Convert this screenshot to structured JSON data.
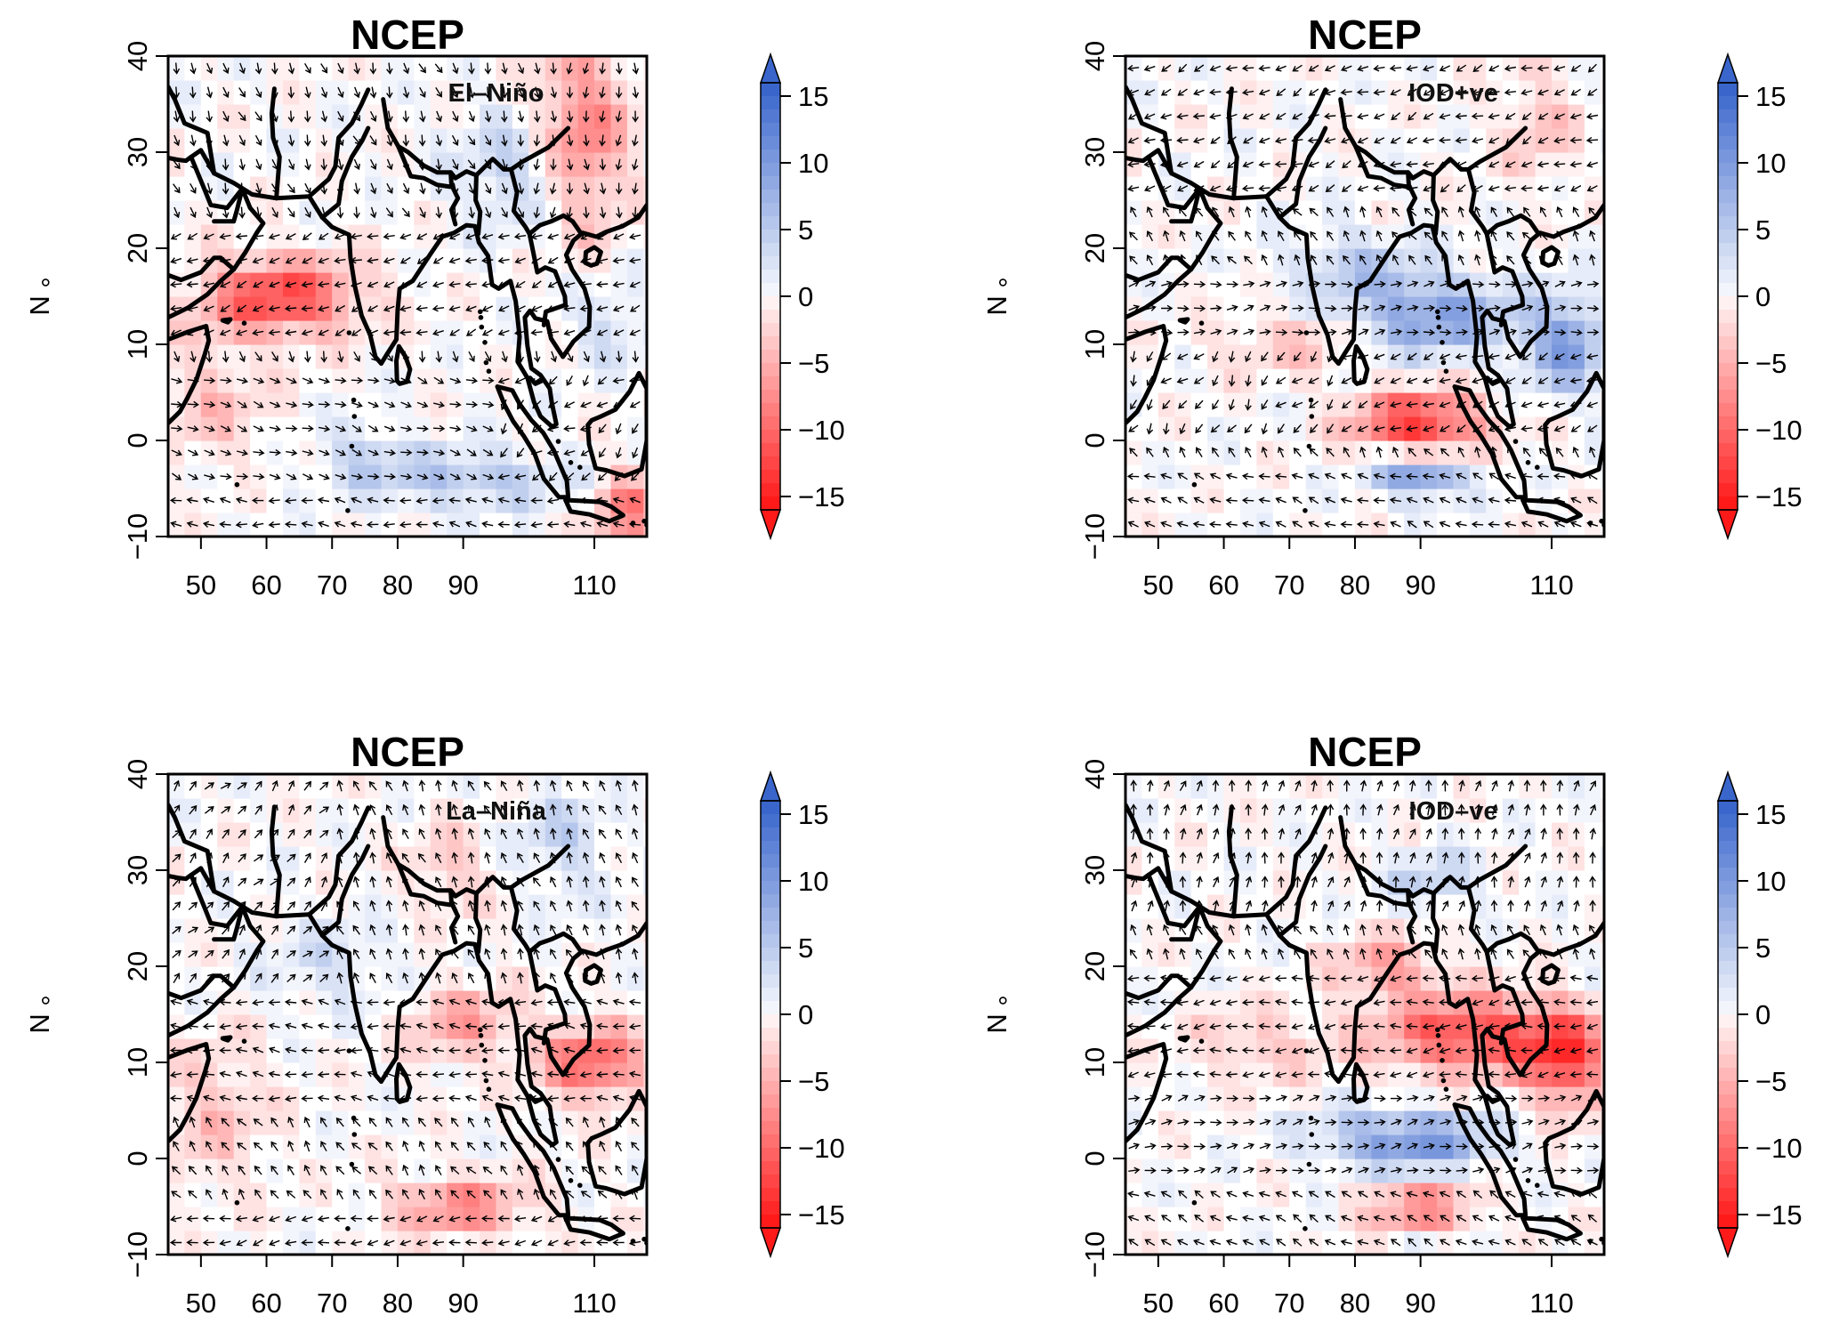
{
  "panels": [
    {
      "id": "el-nino",
      "title": "NCEP",
      "annotation": "El–Niño",
      "ylabel": "° N",
      "wind_regime": "nino",
      "anomaly_centers": [
        {
          "lon": 62,
          "lat": 15,
          "value": -13,
          "spread_lon": 12,
          "spread_lat": 4
        },
        {
          "lon": 108,
          "lat": 32,
          "value": -9,
          "spread_lon": 7,
          "spread_lat": 10
        },
        {
          "lon": 115,
          "lat": -7,
          "value": -9,
          "spread_lon": 5,
          "spread_lat": 4
        },
        {
          "lon": 90,
          "lat": -4,
          "value": 6,
          "spread_lon": 16,
          "spread_lat": 3
        },
        {
          "lon": 98,
          "lat": 28,
          "value": 5,
          "spread_lon": 9,
          "spread_lat": 6
        },
        {
          "lon": 74,
          "lat": -1,
          "value": 4,
          "spread_lon": 6,
          "spread_lat": 3
        },
        {
          "lon": 112,
          "lat": 12,
          "value": 4,
          "spread_lon": 6,
          "spread_lat": 4
        },
        {
          "lon": 52,
          "lat": 4,
          "value": -4,
          "spread_lon": 8,
          "spread_lat": 6
        }
      ]
    },
    {
      "id": "iod-pos",
      "title": "NCEP",
      "annotation": "IOD+ve",
      "ylabel": "° N",
      "wind_regime": "iodpos",
      "anomaly_centers": [
        {
          "lon": 90,
          "lat": 2,
          "value": -14,
          "spread_lon": 10,
          "spread_lat": 3
        },
        {
          "lon": 92,
          "lat": 13,
          "value": 10,
          "spread_lon": 12,
          "spread_lat": 4
        },
        {
          "lon": 112,
          "lat": 10,
          "value": 10,
          "spread_lon": 6,
          "spread_lat": 5
        },
        {
          "lon": 90,
          "lat": -4,
          "value": 11,
          "spread_lon": 7,
          "spread_lat": 2
        },
        {
          "lon": 80,
          "lat": 18,
          "value": 5,
          "spread_lon": 10,
          "spread_lat": 4
        },
        {
          "lon": 70,
          "lat": 10,
          "value": -4,
          "spread_lon": 12,
          "spread_lat": 3
        },
        {
          "lon": 108,
          "lat": 33,
          "value": -4,
          "spread_lon": 6,
          "spread_lat": 6
        }
      ]
    },
    {
      "id": "la-nina",
      "title": "NCEP",
      "annotation": "La–Niña",
      "ylabel": "° N",
      "wind_regime": "nina",
      "anomaly_centers": [
        {
          "lon": 110,
          "lat": 10,
          "value": -11,
          "spread_lon": 8,
          "spread_lat": 4
        },
        {
          "lon": 90,
          "lat": -5,
          "value": -8,
          "spread_lon": 11,
          "spread_lat": 3
        },
        {
          "lon": 90,
          "lat": 14,
          "value": -6,
          "spread_lon": 9,
          "spread_lat": 4
        },
        {
          "lon": 88,
          "lat": 30,
          "value": -4,
          "spread_lon": 6,
          "spread_lat": 5
        },
        {
          "lon": 105,
          "lat": 33,
          "value": 4,
          "spread_lon": 7,
          "spread_lat": 6
        },
        {
          "lon": 70,
          "lat": 20,
          "value": 3,
          "spread_lon": 10,
          "spread_lat": 5
        },
        {
          "lon": 52,
          "lat": 5,
          "value": -4,
          "spread_lon": 8,
          "spread_lat": 8
        }
      ]
    },
    {
      "id": "iod-neg",
      "title": "NCEP",
      "annotation": "IOD–ve",
      "ylabel": "° N",
      "wind_regime": "iodneg",
      "anomaly_centers": [
        {
          "lon": 98,
          "lat": 13,
          "value": -13,
          "spread_lon": 14,
          "spread_lat": 4
        },
        {
          "lon": 112,
          "lat": 10,
          "value": -12,
          "spread_lon": 6,
          "spread_lat": 5
        },
        {
          "lon": 85,
          "lat": 20,
          "value": -7,
          "spread_lon": 8,
          "spread_lat": 3
        },
        {
          "lon": 90,
          "lat": -5,
          "value": -10,
          "spread_lon": 9,
          "spread_lat": 2
        },
        {
          "lon": 88,
          "lat": 2,
          "value": 11,
          "spread_lon": 13,
          "spread_lat": 3
        },
        {
          "lon": 65,
          "lat": 12,
          "value": -4,
          "spread_lon": 10,
          "spread_lat": 4
        },
        {
          "lon": 92,
          "lat": 29,
          "value": 5,
          "spread_lon": 7,
          "spread_lat": 3
        }
      ]
    }
  ],
  "axes": {
    "x_range": [
      45,
      118
    ],
    "y_range": [
      -10,
      40
    ],
    "x_ticks": [
      "50",
      "60",
      "70",
      "80",
      "90",
      "110"
    ],
    "x_tick_values": [
      50,
      60,
      70,
      80,
      90,
      110
    ],
    "y_ticks": [
      "−10",
      "0",
      "10",
      "20",
      "30",
      "40"
    ],
    "y_tick_values": [
      -10,
      0,
      10,
      20,
      30,
      40
    ]
  },
  "colorbar": {
    "range": [
      -16,
      16
    ],
    "ticks": [
      "15",
      "10",
      "5",
      "0",
      "−5",
      "−10",
      "−15"
    ],
    "tick_values": [
      15,
      10,
      5,
      0,
      -5,
      -10,
      -15
    ],
    "positive_color": "#3a66cc",
    "zero_color": "#ffffff",
    "negative_color": "#ff1a1a"
  }
}
